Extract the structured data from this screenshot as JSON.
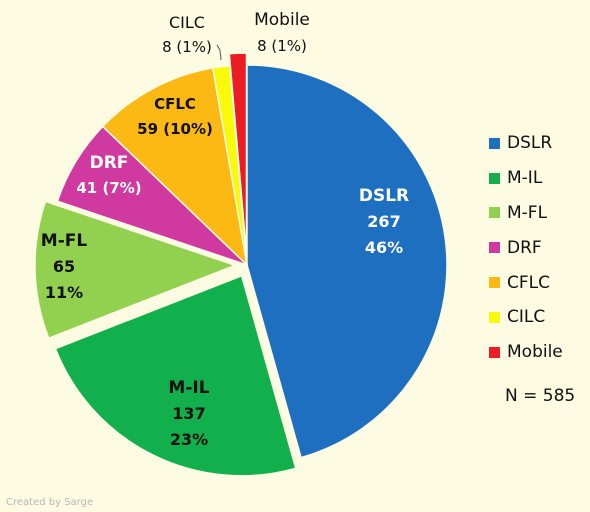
{
  "chart_data": {
    "type": "pie",
    "title": "",
    "slices": [
      {
        "key": "dslr",
        "name": "DSLR",
        "value": 267,
        "percent": "46%",
        "color": "#1e6fc0",
        "text_color": "#ffffff"
      },
      {
        "key": "m-il",
        "name": "M-IL",
        "value": 137,
        "percent": "23%",
        "color": "#12b04c",
        "text_color": "#111111"
      },
      {
        "key": "m-fl",
        "name": "M-FL",
        "value": 65,
        "percent": "11%",
        "color": "#92d050",
        "text_color": "#111111"
      },
      {
        "key": "drf",
        "name": "DRF",
        "value": 41,
        "percent": "7%",
        "color": "#d0399f",
        "text_color": "#ffffff"
      },
      {
        "key": "cflc",
        "name": "CFLC",
        "value": 59,
        "percent": "10%",
        "color": "#fcb813",
        "text_color": "#111111"
      },
      {
        "key": "cilc",
        "name": "CILC",
        "value": 8,
        "percent": "1%",
        "color": "#f9f90a",
        "text_color": "#111111"
      },
      {
        "key": "mobile",
        "name": "Mobile",
        "value": 8,
        "percent": "1%",
        "color": "#ec1c24",
        "text_color": "#111111"
      }
    ],
    "labels": {
      "dslr": {
        "name": "DSLR",
        "value": "267",
        "percent": "46%"
      },
      "m-il": {
        "name": "M-IL",
        "value": "137",
        "percent": "23%"
      },
      "m-fl": {
        "name": "M-FL",
        "value": "65",
        "percent": "11%"
      },
      "drf": {
        "name": "DRF",
        "value_percent": "41 (7%)"
      },
      "cflc": {
        "name": "CFLC",
        "value_percent": "59 (10%)"
      },
      "cilc": {
        "name": "CILC",
        "value_percent": "8 (1%)"
      },
      "mobile": {
        "name": "Mobile",
        "value_percent": "8 (1%)"
      }
    },
    "exploded": [
      "m-il",
      "m-fl",
      "mobile"
    ],
    "legend_position": "right",
    "total_label": "N = 585"
  },
  "credit": "Created by Sarge"
}
